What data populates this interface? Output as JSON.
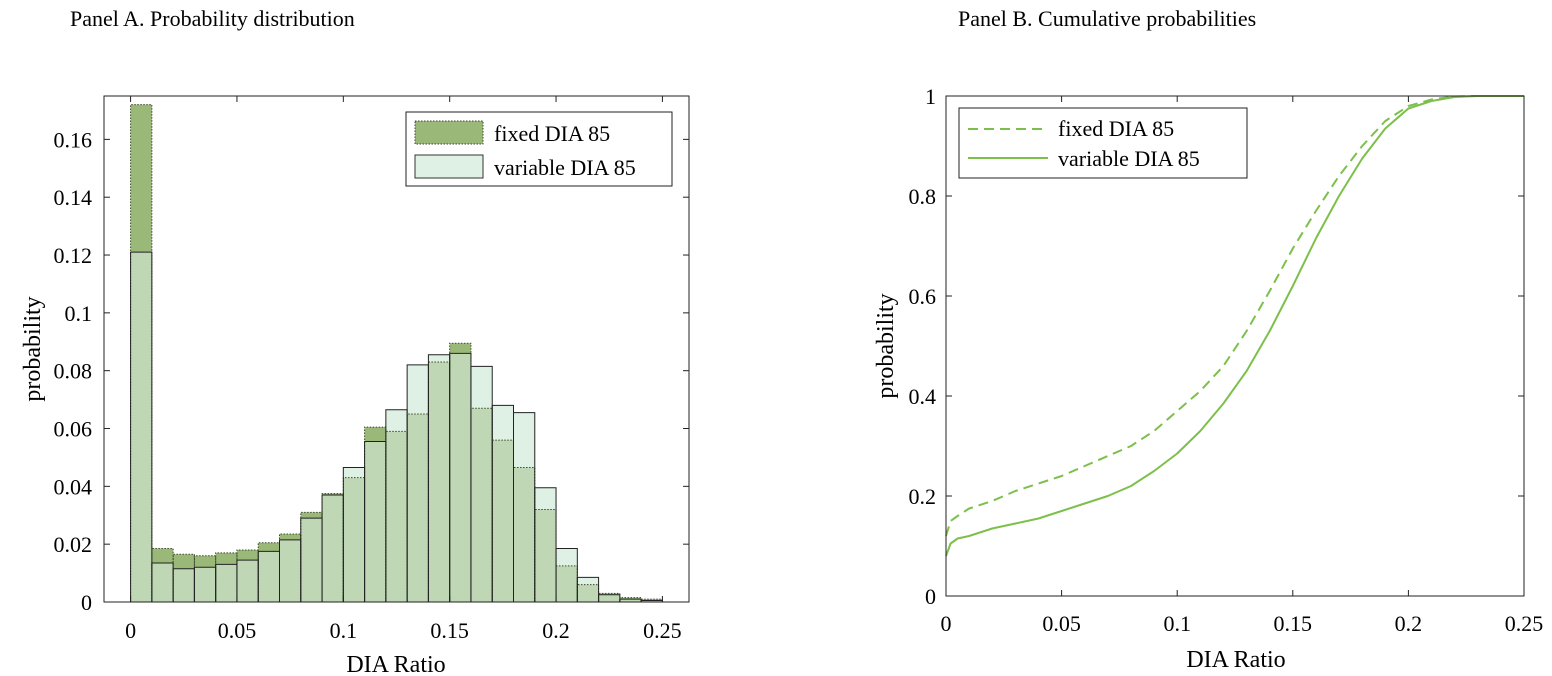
{
  "colors": {
    "fixed_fill": "#9ab878",
    "variable_fill": "#dff1e4",
    "overlap_fill": "#bfd7b4",
    "cdf_line": "#7cc04b"
  },
  "chart_data": [
    {
      "type": "bar",
      "panel_title": "Panel A. Probability distribution",
      "xlabel": "DIA Ratio",
      "ylabel": "probability",
      "xlim": [
        -0.0125,
        0.2625
      ],
      "ylim": [
        0,
        0.175
      ],
      "xticks": [
        0,
        0.05,
        0.1,
        0.15,
        0.2,
        0.25
      ],
      "xtick_labels": [
        "0",
        "0.05",
        "0.1",
        "0.15",
        "0.2",
        "0.25"
      ],
      "yticks": [
        0,
        0.02,
        0.04,
        0.06,
        0.08,
        0.1,
        0.12,
        0.14,
        0.16
      ],
      "ytick_labels": [
        "0",
        "0.02",
        "0.04",
        "0.06",
        "0.08",
        "0.1",
        "0.12",
        "0.14",
        "0.16"
      ],
      "bin_width": 0.01,
      "bin_starts": [
        0,
        0.01,
        0.02,
        0.03,
        0.04,
        0.05,
        0.06,
        0.07,
        0.08,
        0.09,
        0.1,
        0.11,
        0.12,
        0.13,
        0.14,
        0.15,
        0.16,
        0.17,
        0.18,
        0.19,
        0.2,
        0.21,
        0.22,
        0.23,
        0.24
      ],
      "legend_position": "top-right",
      "grid": false,
      "series": [
        {
          "name": "fixed DIA 85",
          "values": [
            0.172,
            0.0185,
            0.0165,
            0.016,
            0.017,
            0.018,
            0.0205,
            0.0235,
            0.031,
            0.0375,
            0.043,
            0.0605,
            0.059,
            0.065,
            0.083,
            0.0895,
            0.067,
            0.056,
            0.0465,
            0.032,
            0.0125,
            0.006,
            0.003,
            0.0015,
            0.001
          ]
        },
        {
          "name": "variable DIA 85",
          "values": [
            0.121,
            0.0135,
            0.0115,
            0.012,
            0.013,
            0.0145,
            0.0175,
            0.0215,
            0.029,
            0.037,
            0.0465,
            0.0555,
            0.0665,
            0.082,
            0.0855,
            0.086,
            0.0815,
            0.068,
            0.0655,
            0.0395,
            0.0185,
            0.0085,
            0.0025,
            0.001,
            0.0005
          ]
        }
      ]
    },
    {
      "type": "line",
      "panel_title": "Panel B. Cumulative probabilities",
      "xlabel": "DIA Ratio",
      "ylabel": "probability",
      "xlim": [
        0,
        0.25
      ],
      "ylim": [
        0,
        1
      ],
      "xticks": [
        0,
        0.05,
        0.1,
        0.15,
        0.2,
        0.25
      ],
      "xtick_labels": [
        "0",
        "0.05",
        "0.1",
        "0.15",
        "0.2",
        "0.25"
      ],
      "yticks": [
        0,
        0.2,
        0.4,
        0.6,
        0.8,
        1
      ],
      "ytick_labels": [
        "0",
        "0.2",
        "0.4",
        "0.6",
        "0.8",
        "1"
      ],
      "legend_position": "top-left",
      "grid": false,
      "series": [
        {
          "name": "fixed DIA 85",
          "style": "dashed",
          "x": [
            0,
            0.002,
            0.005,
            0.01,
            0.02,
            0.03,
            0.04,
            0.05,
            0.06,
            0.07,
            0.08,
            0.09,
            0.1,
            0.11,
            0.12,
            0.13,
            0.14,
            0.15,
            0.16,
            0.17,
            0.18,
            0.19,
            0.2,
            0.21,
            0.22,
            0.23,
            0.24,
            0.25
          ],
          "y": [
            0.12,
            0.15,
            0.16,
            0.175,
            0.19,
            0.21,
            0.225,
            0.24,
            0.26,
            0.28,
            0.3,
            0.33,
            0.37,
            0.41,
            0.46,
            0.53,
            0.61,
            0.695,
            0.77,
            0.84,
            0.9,
            0.95,
            0.98,
            0.993,
            0.999,
            1.0,
            1.0,
            1.0
          ]
        },
        {
          "name": "variable DIA 85",
          "style": "solid",
          "x": [
            0,
            0.002,
            0.005,
            0.01,
            0.02,
            0.03,
            0.04,
            0.05,
            0.06,
            0.07,
            0.08,
            0.09,
            0.1,
            0.11,
            0.12,
            0.13,
            0.14,
            0.15,
            0.16,
            0.17,
            0.18,
            0.19,
            0.2,
            0.21,
            0.22,
            0.23,
            0.24,
            0.25
          ],
          "y": [
            0.08,
            0.105,
            0.115,
            0.12,
            0.135,
            0.145,
            0.155,
            0.17,
            0.185,
            0.2,
            0.22,
            0.25,
            0.285,
            0.33,
            0.385,
            0.45,
            0.53,
            0.62,
            0.715,
            0.8,
            0.875,
            0.935,
            0.975,
            0.99,
            0.998,
            1.0,
            1.0,
            1.0
          ]
        }
      ]
    }
  ]
}
